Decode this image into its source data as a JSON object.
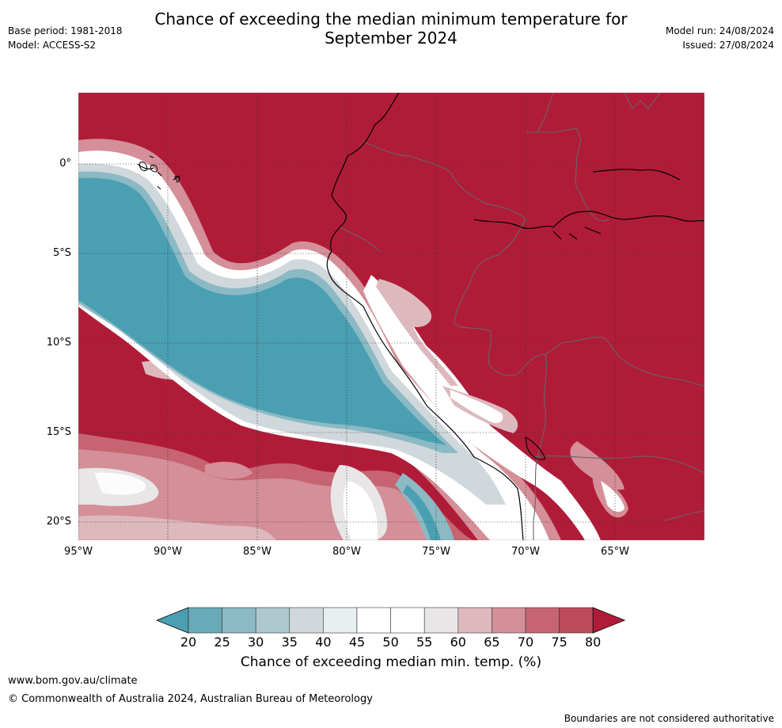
{
  "title": {
    "line1": "Chance of exceeding the median minimum temperature for",
    "line2": "September 2024"
  },
  "meta_left": {
    "base_period": "Base period: 1981-2018",
    "model": "Model: ACCESS-S2"
  },
  "meta_right": {
    "model_run": "Model run: 24/08/2024",
    "issued": "Issued: 27/08/2024"
  },
  "map": {
    "lat_labels": [
      "0°",
      "5°S",
      "10°S",
      "15°S",
      "20°S"
    ],
    "lon_labels": [
      "95°W",
      "90°W",
      "85°W",
      "80°W",
      "75°W",
      "70°W",
      "65°W"
    ],
    "colors": {
      "ocean_cool": "#4aa0b2",
      "warm_high": "#b01c38",
      "border": "#666666",
      "coast": "#000000"
    }
  },
  "colorbar": {
    "ticks": [
      "20",
      "25",
      "30",
      "35",
      "40",
      "45",
      "50",
      "55",
      "60",
      "65",
      "70",
      "75",
      "80"
    ],
    "colors": [
      "#4aa0b2",
      "#6aaab8",
      "#8bb9c4",
      "#adc8cf",
      "#d0d8dc",
      "#e9eef1",
      "#ffffff",
      "#ffffff",
      "#e8e6e7",
      "#ddb9be",
      "#d48f98",
      "#c76471",
      "#bd4a5a",
      "#b01c38"
    ],
    "label": "Chance of exceeding median min. temp. (%)"
  },
  "footer": {
    "url": "www.bom.gov.au/climate",
    "copyright": "© Commonwealth of Australia 2024, Australian Bureau of Meteorology",
    "disclaimer": "Boundaries are not considered authoritative"
  }
}
